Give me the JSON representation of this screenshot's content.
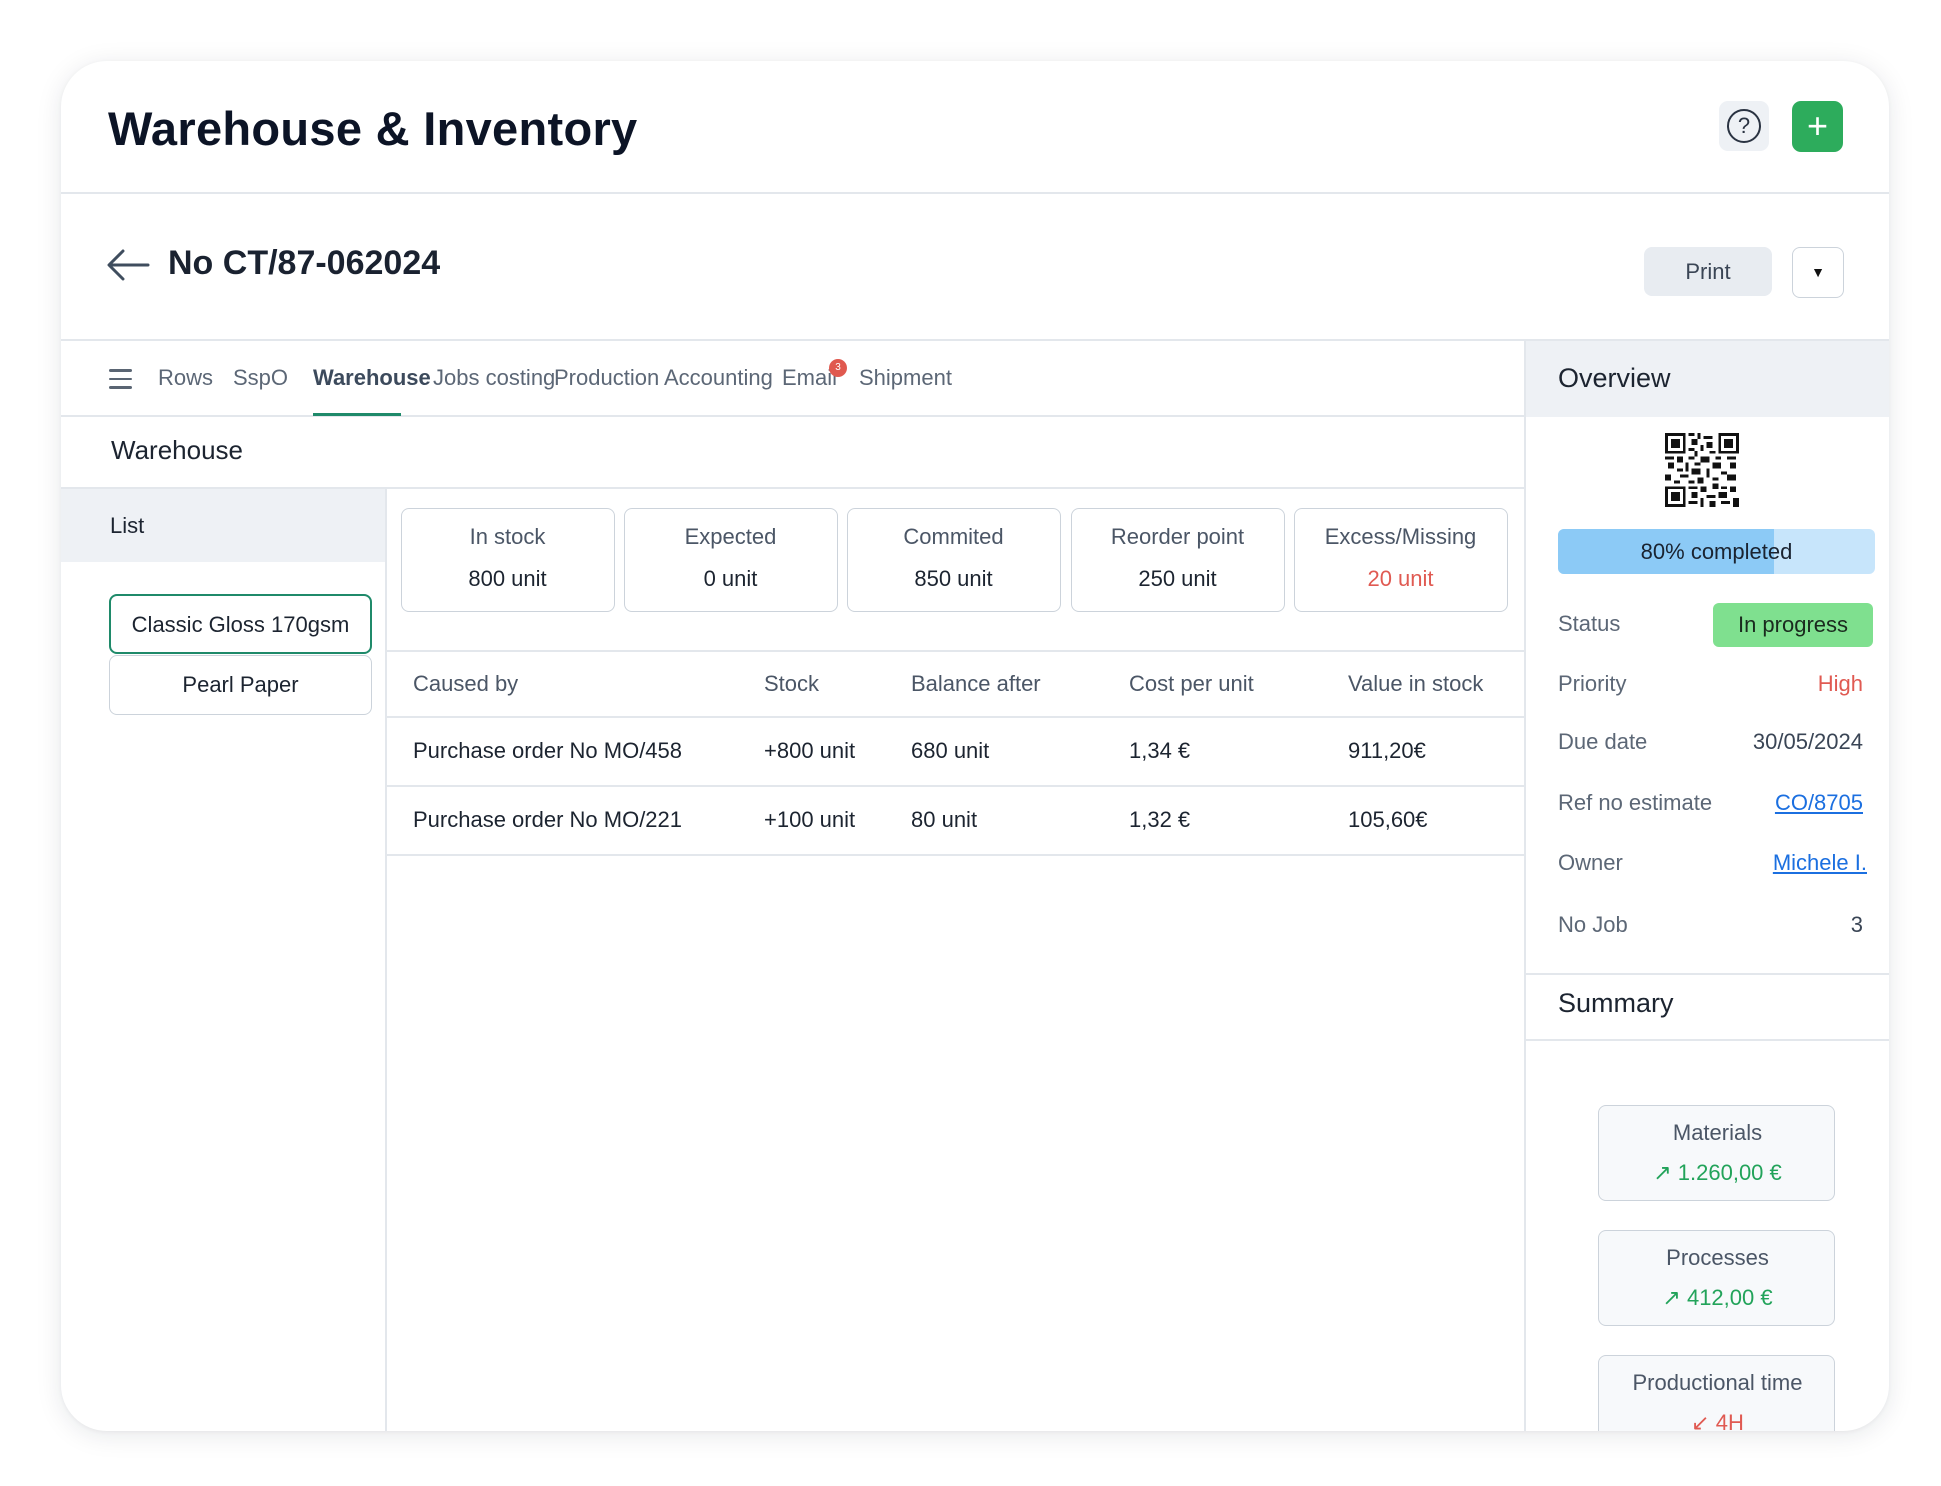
{
  "app": {
    "title": "Warehouse & Inventory",
    "help_icon": "question-circle-icon",
    "add_icon": "plus-icon",
    "add_label": "+"
  },
  "order": {
    "number": "No CT/87-062024",
    "print_label": "Print",
    "more_icon": "caret-down-icon",
    "more_label": "▼"
  },
  "tabs": [
    {
      "label": "Rows"
    },
    {
      "label": "SspO"
    },
    {
      "label": "Warehouse",
      "active": true
    },
    {
      "label": "Jobs costing"
    },
    {
      "label": "Production"
    },
    {
      "label": "Accounting"
    },
    {
      "label": "Email",
      "badge": "3"
    },
    {
      "label": "Shipment"
    }
  ],
  "warehouse": {
    "title": "Warehouse",
    "list_header": "List",
    "items": [
      "Classic Gloss 170gsm",
      "Pearl Paper"
    ],
    "stats": [
      {
        "label": "In stock",
        "value": "800 unit"
      },
      {
        "label": "Expected",
        "value": "0 unit"
      },
      {
        "label": "Commited",
        "value": "850 unit"
      },
      {
        "label": "Reorder point",
        "value": "250 unit"
      },
      {
        "label": "Excess/Missing",
        "value": "20 unit",
        "warn": true
      }
    ],
    "table": {
      "columns": [
        "Caused by",
        "Stock",
        "Balance after",
        "Cost per unit",
        "Value in stock"
      ],
      "rows": [
        [
          "Purchase order No MO/458",
          "+800 unit",
          "680 unit",
          "1,34 €",
          "911,20€"
        ],
        [
          "Purchase order No MO/221",
          "+100 unit",
          "80 unit",
          "1,32 €",
          "105,60€"
        ]
      ]
    }
  },
  "overview": {
    "title": "Overview",
    "qr_icon": "qr-code-icon",
    "progress": {
      "percent": 80,
      "label": "80% completed"
    },
    "fields": {
      "status": {
        "label": "Status",
        "value": "In progress"
      },
      "priority": {
        "label": "Priority",
        "value": "High"
      },
      "due_date": {
        "label": "Due date",
        "value": "30/05/2024"
      },
      "ref_no": {
        "label": "Ref no estimate",
        "value": "CO/8705"
      },
      "owner": {
        "label": "Owner",
        "value": "Michele I."
      },
      "no_job": {
        "label": "No Job",
        "value": "3"
      }
    }
  },
  "summary": {
    "title": "Summary",
    "cards": [
      {
        "label": "Materials",
        "value": "1.260,00 €",
        "trend": "up",
        "arrow": "↗"
      },
      {
        "label": "Processes",
        "value": "412,00 €",
        "trend": "up",
        "arrow": "↗"
      },
      {
        "label": "Productional time",
        "value": "4H",
        "trend": "down",
        "arrow": "↙"
      }
    ]
  },
  "colors": {
    "accent_green": "#2dac5c",
    "tab_underline": "#1f8a6a",
    "warn_red": "#e05a52",
    "link_blue": "#1b6fe0",
    "status_green": "#7fe08f",
    "progress_fill": "#8ccaf6",
    "progress_track": "#c7e5fb"
  }
}
